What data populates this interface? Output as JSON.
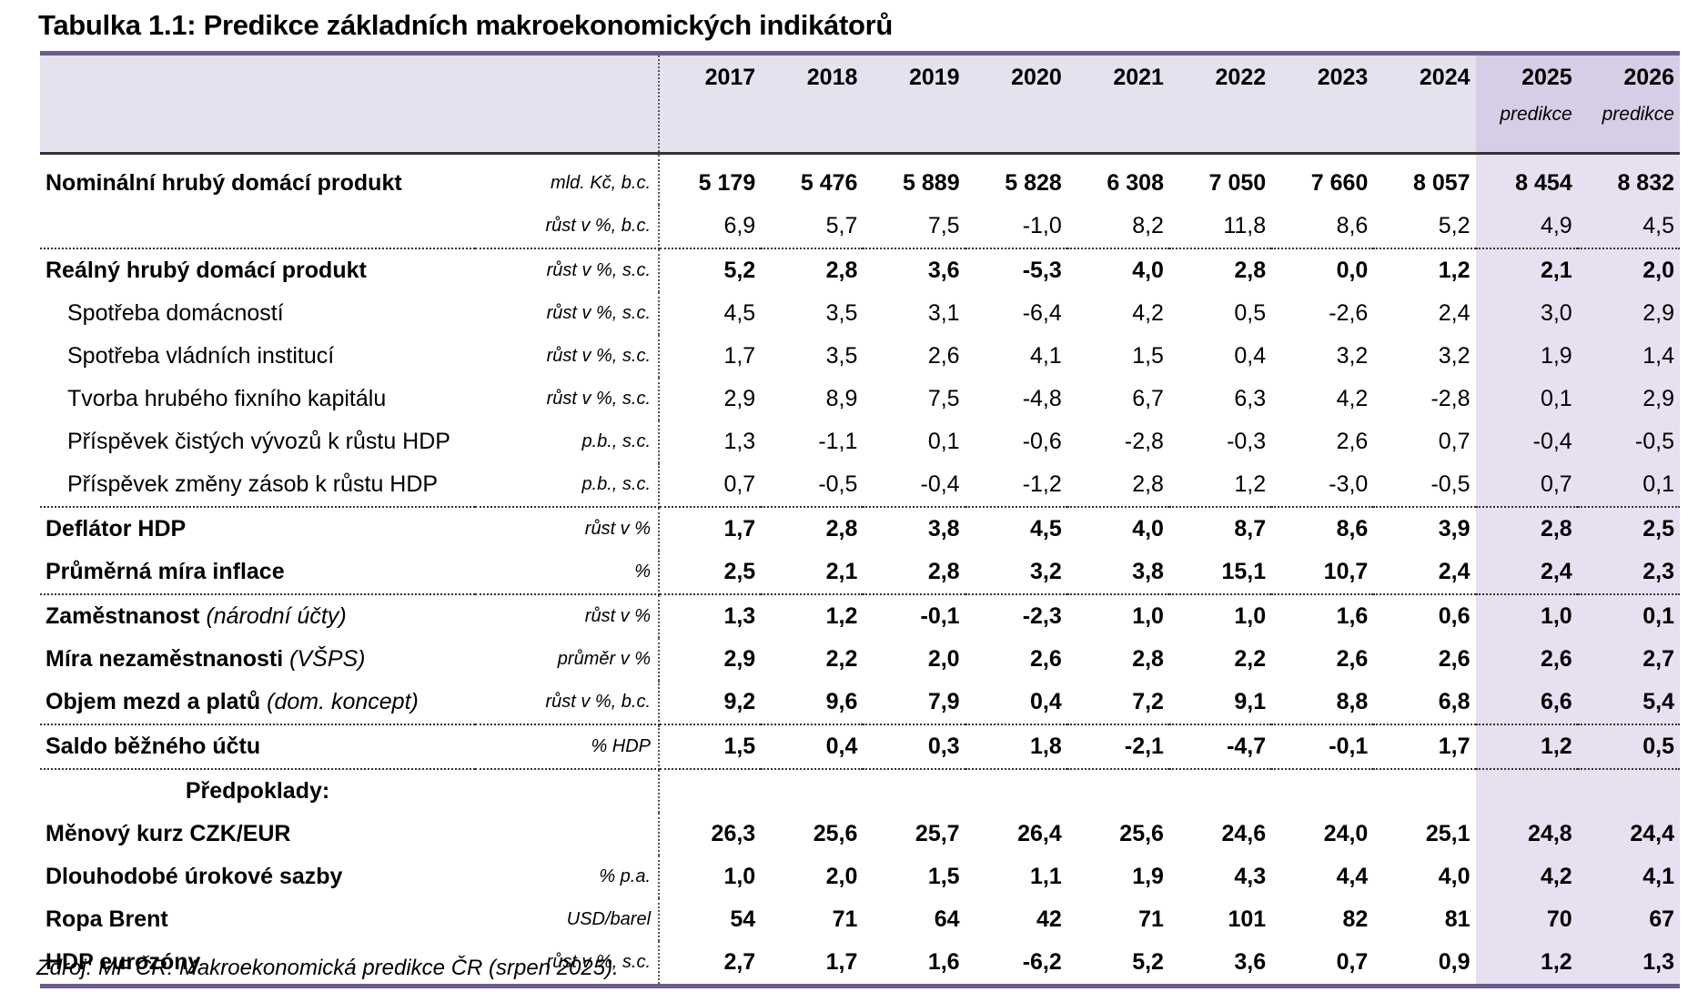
{
  "title": "Tabulka 1.1: Predikce základních makroekonomických indikátorů",
  "header": {
    "years": [
      "2017",
      "2018",
      "2019",
      "2020",
      "2021",
      "2022",
      "2023",
      "2024",
      "2025",
      "2026"
    ],
    "forecast_notes": [
      "predikce",
      "predikce"
    ]
  },
  "rows": [
    {
      "label": "Nominální hrubý domácí produkt",
      "unit": "mld. Kč, b.c.",
      "bold": true,
      "values": [
        "5 179",
        "5 476",
        "5 889",
        "5 828",
        "6 308",
        "7 050",
        "7 660",
        "8 057",
        "8 454",
        "8 832"
      ]
    },
    {
      "unit": "růst v %, b.c.",
      "break": true,
      "values": [
        "6,9",
        "5,7",
        "7,5",
        "-1,0",
        "8,2",
        "11,8",
        "8,6",
        "5,2",
        "4,9",
        "4,5"
      ]
    },
    {
      "label": "Reálný hrubý domácí produkt",
      "unit": "růst v %, s.c.",
      "bold": true,
      "values": [
        "5,2",
        "2,8",
        "3,6",
        "-5,3",
        "4,0",
        "2,8",
        "0,0",
        "1,2",
        "2,1",
        "2,0"
      ]
    },
    {
      "label": "Spotřeba domácností",
      "unit": "růst v %, s.c.",
      "indent": true,
      "values": [
        "4,5",
        "3,5",
        "3,1",
        "-6,4",
        "4,2",
        "0,5",
        "-2,6",
        "2,4",
        "3,0",
        "2,9"
      ]
    },
    {
      "label": "Spotřeba vládních institucí",
      "unit": "růst v %, s.c.",
      "indent": true,
      "values": [
        "1,7",
        "3,5",
        "2,6",
        "4,1",
        "1,5",
        "0,4",
        "3,2",
        "3,2",
        "1,9",
        "1,4"
      ]
    },
    {
      "label": "Tvorba hrubého fixního kapitálu",
      "unit": "růst v %, s.c.",
      "indent": true,
      "values": [
        "2,9",
        "8,9",
        "7,5",
        "-4,8",
        "6,7",
        "6,3",
        "4,2",
        "-2,8",
        "0,1",
        "2,9"
      ]
    },
    {
      "label": "Příspěvek čistých vývozů k růstu HDP",
      "unit": "p.b., s.c.",
      "indent": true,
      "values": [
        "1,3",
        "-1,1",
        "0,1",
        "-0,6",
        "-2,8",
        "-0,3",
        "2,6",
        "0,7",
        "-0,4",
        "-0,5"
      ]
    },
    {
      "label": "Příspěvek změny zásob k růstu HDP",
      "unit": "p.b., s.c.",
      "indent": true,
      "break": true,
      "values": [
        "0,7",
        "-0,5",
        "-0,4",
        "-1,2",
        "2,8",
        "1,2",
        "-3,0",
        "-0,5",
        "0,7",
        "0,1"
      ]
    },
    {
      "label": "Deflátor HDP",
      "unit": "růst v %",
      "bold": true,
      "values": [
        "1,7",
        "2,8",
        "3,8",
        "4,5",
        "4,0",
        "8,7",
        "8,6",
        "3,9",
        "2,8",
        "2,5"
      ]
    },
    {
      "label": "Průměrná míra inflace",
      "unit": "%",
      "bold": true,
      "break": true,
      "values": [
        "2,5",
        "2,1",
        "2,8",
        "3,2",
        "3,8",
        "15,1",
        "10,7",
        "2,4",
        "2,4",
        "2,3"
      ]
    },
    {
      "label": "Zaměstnanost",
      "label_note": "(národní účty)",
      "unit": "růst v %",
      "bold": true,
      "values": [
        "1,3",
        "1,2",
        "-0,1",
        "-2,3",
        "1,0",
        "1,0",
        "1,6",
        "0,6",
        "1,0",
        "0,1"
      ]
    },
    {
      "label": "Míra nezaměstnanosti",
      "label_note": "(VŠPS)",
      "unit": "průměr v %",
      "bold": true,
      "values": [
        "2,9",
        "2,2",
        "2,0",
        "2,6",
        "2,8",
        "2,2",
        "2,6",
        "2,6",
        "2,6",
        "2,7"
      ]
    },
    {
      "label": "Objem mezd a platů",
      "label_note": "(dom. koncept)",
      "unit": "růst v %, b.c.",
      "bold": true,
      "break": true,
      "values": [
        "9,2",
        "9,6",
        "7,9",
        "0,4",
        "7,2",
        "9,1",
        "8,8",
        "6,8",
        "6,6",
        "5,4"
      ]
    },
    {
      "label": "Saldo běžného účtu",
      "unit": "% HDP",
      "bold": true,
      "break": true,
      "values": [
        "1,5",
        "0,4",
        "0,3",
        "1,8",
        "-2,1",
        "-4,7",
        "-0,1",
        "1,7",
        "1,2",
        "0,5"
      ]
    },
    {
      "heading": "Předpoklady:"
    },
    {
      "label": "Měnový kurz CZK/EUR",
      "bold": true,
      "values": [
        "26,3",
        "25,6",
        "25,7",
        "26,4",
        "25,6",
        "24,6",
        "24,0",
        "25,1",
        "24,8",
        "24,4"
      ]
    },
    {
      "label": "Dlouhodobé úrokové sazby",
      "unit": "% p.a.",
      "bold": true,
      "values": [
        "1,0",
        "2,0",
        "1,5",
        "1,1",
        "1,9",
        "4,3",
        "4,4",
        "4,0",
        "4,2",
        "4,1"
      ]
    },
    {
      "label": "Ropa Brent",
      "unit": "USD/barel",
      "bold": true,
      "values": [
        "54",
        "71",
        "64",
        "42",
        "71",
        "101",
        "82",
        "81",
        "70",
        "67"
      ]
    },
    {
      "label": "HDP eurozóny",
      "unit": "růst v %, s.c.",
      "bold": true,
      "values": [
        "2,7",
        "1,7",
        "1,6",
        "-6,2",
        "5,2",
        "3,6",
        "0,7",
        "0,9",
        "1,2",
        "1,3"
      ]
    }
  ],
  "source": "Zdroj: MF ČR: Makroekonomická predikce ČR (srpen 2025)."
}
